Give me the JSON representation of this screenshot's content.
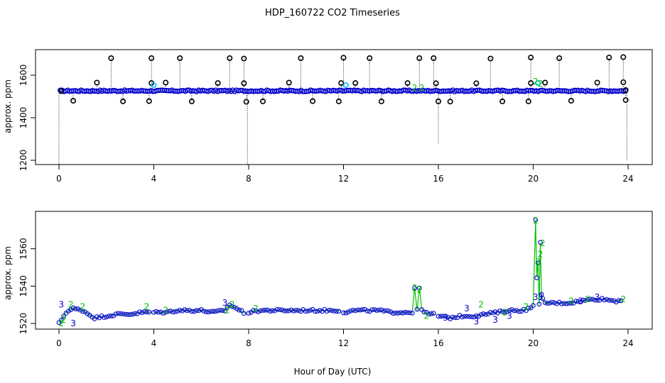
{
  "title": "HDP_160722  CO2 Timeseries",
  "xlabel": "Hour of Day (UTC)",
  "colors": {
    "ref": "#000000",
    "s1": "#00bfff",
    "s2": "#00c000",
    "s3": "#0000cc"
  },
  "chart_data": [
    {
      "type": "scatter",
      "ylabel": "approx. ppm",
      "xlim": [
        0,
        24
      ],
      "ylim": [
        1180,
        1720
      ],
      "xticks": [
        0,
        4,
        8,
        12,
        16,
        20,
        24
      ],
      "yticks": [
        1200,
        1400,
        1600
      ],
      "series": [
        {
          "marker": "o",
          "color": "#000000",
          "points": [
            [
              0.1,
              1525
            ],
            [
              0.6,
              1480
            ],
            [
              1.6,
              1565
            ],
            [
              2.2,
              1680
            ],
            [
              2.7,
              1477
            ],
            [
              3.8,
              1478
            ],
            [
              3.9,
              1680
            ],
            [
              3.9,
              1563
            ],
            [
              4.5,
              1565
            ],
            [
              5.1,
              1680
            ],
            [
              5.6,
              1477
            ],
            [
              6.7,
              1563
            ],
            [
              7.2,
              1680
            ],
            [
              7.8,
              1678
            ],
            [
              7.8,
              1562
            ],
            [
              7.9,
              1475
            ],
            [
              8.6,
              1477
            ],
            [
              9.7,
              1565
            ],
            [
              10.2,
              1680
            ],
            [
              10.7,
              1478
            ],
            [
              11.8,
              1477
            ],
            [
              11.9,
              1563
            ],
            [
              12.0,
              1682
            ],
            [
              12.5,
              1563
            ],
            [
              13.1,
              1680
            ],
            [
              13.6,
              1477
            ],
            [
              14.7,
              1563
            ],
            [
              15.2,
              1680
            ],
            [
              15.8,
              1680
            ],
            [
              15.9,
              1562
            ],
            [
              16.0,
              1477
            ],
            [
              16.5,
              1476
            ],
            [
              17.6,
              1562
            ],
            [
              18.2,
              1678
            ],
            [
              18.7,
              1477
            ],
            [
              19.8,
              1477
            ],
            [
              19.9,
              1563
            ],
            [
              19.9,
              1683
            ],
            [
              20.5,
              1565
            ],
            [
              21.1,
              1680
            ],
            [
              21.6,
              1480
            ],
            [
              22.7,
              1565
            ],
            [
              23.2,
              1683
            ],
            [
              23.8,
              1685
            ],
            [
              23.8,
              1567
            ],
            [
              23.9,
              1530
            ],
            [
              23.9,
              1483
            ]
          ]
        },
        {
          "marker": "o",
          "color": "#00bfff",
          "points": [
            [
              4.0,
              1553
            ],
            [
              12.1,
              1553
            ],
            [
              20.2,
              1563
            ]
          ]
        },
        {
          "marker": "2",
          "color": "#00c000",
          "points": [
            [
              15.0,
              1540
            ],
            [
              15.3,
              1540
            ],
            [
              20.1,
              1570
            ],
            [
              20.3,
              1560
            ]
          ]
        }
      ],
      "drops": [
        [
          0.0,
          1180
        ],
        [
          7.95,
          1180
        ],
        [
          16.0,
          1280
        ],
        [
          23.95,
          1200
        ]
      ]
    },
    {
      "type": "scatter",
      "ylabel": "approx. ppm",
      "xlim": [
        0,
        24
      ],
      "ylim": [
        1517,
        1580
      ],
      "xticks": [
        0,
        4,
        8,
        12,
        16,
        20,
        24
      ],
      "yticks": [
        1520,
        1540,
        1560
      ],
      "series": [
        {
          "marker": "2",
          "color": "#00c000",
          "points": [
            [
              0.1,
              1520
            ],
            [
              0.2,
              1522
            ],
            [
              0.5,
              1530
            ],
            [
              1.0,
              1529
            ],
            [
              3.7,
              1529
            ],
            [
              4.5,
              1527
            ],
            [
              7.1,
              1527
            ],
            [
              7.3,
              1530
            ],
            [
              8.3,
              1528
            ],
            [
              15.0,
              1539
            ],
            [
              15.2,
              1538
            ],
            [
              15.5,
              1524
            ],
            [
              17.8,
              1530
            ],
            [
              18.8,
              1526
            ],
            [
              19.7,
              1529
            ],
            [
              20.1,
              1575
            ],
            [
              20.2,
              1553
            ],
            [
              20.3,
              1557
            ],
            [
              20.4,
              1563
            ],
            [
              21.6,
              1532
            ],
            [
              22.3,
              1533
            ],
            [
              23.8,
              1533
            ]
          ]
        },
        {
          "marker": "3",
          "color": "#0000cc",
          "points": [
            [
              0.1,
              1530
            ],
            [
              0.6,
              1520
            ],
            [
              7.0,
              1531
            ],
            [
              16.3,
              1523
            ],
            [
              17.2,
              1528
            ],
            [
              17.6,
              1521
            ],
            [
              18.4,
              1522
            ],
            [
              19.0,
              1524
            ],
            [
              20.1,
              1534
            ],
            [
              20.3,
              1534
            ],
            [
              22.0,
              1532
            ],
            [
              22.7,
              1534
            ]
          ]
        }
      ],
      "segments": [
        {
          "color": "#00c000",
          "x": [
            0.0,
            0.3,
            0.6,
            1.0,
            1.5,
            2.0,
            2.5,
            3.0,
            3.5,
            3.9
          ],
          "y": [
            1520,
            1526,
            1528,
            1527,
            1523,
            1524,
            1525,
            1525,
            1526,
            1526
          ]
        },
        {
          "color": "#00c000",
          "x": [
            4.0,
            4.5,
            5.0,
            5.5,
            6.0,
            6.5,
            7.0,
            7.2,
            7.5,
            7.9
          ],
          "y": [
            1526,
            1526,
            1527,
            1527,
            1527,
            1526,
            1527,
            1530,
            1528,
            1525
          ]
        },
        {
          "color": "#00c000",
          "x": [
            8.0,
            8.5,
            9.0,
            9.5,
            10.0,
            10.5,
            11.0,
            11.5,
            11.9
          ],
          "y": [
            1526,
            1527,
            1527,
            1527,
            1527,
            1527,
            1527,
            1527,
            1527
          ]
        },
        {
          "color": "#00c000",
          "x": [
            12.0,
            12.5,
            13.0,
            13.5,
            14.0,
            14.5,
            14.9,
            15.0,
            15.1,
            15.2,
            15.3,
            15.4,
            15.6,
            15.9
          ],
          "y": [
            1526,
            1527,
            1527,
            1527,
            1526,
            1526,
            1526,
            1539,
            1527,
            1539,
            1528,
            1526,
            1525,
            1525
          ]
        },
        {
          "color": "#00c000",
          "x": [
            16.0,
            16.5,
            17.0,
            17.5,
            18.0,
            18.5,
            19.0,
            19.5,
            19.9,
            20.0,
            20.1,
            20.15,
            20.2,
            20.25,
            20.3,
            20.35,
            20.4,
            20.5,
            21.0,
            21.5,
            22.0,
            22.5,
            23.0,
            23.5,
            23.8
          ],
          "y": [
            1524,
            1523,
            1524,
            1524,
            1525,
            1526,
            1527,
            1527,
            1528,
            1530,
            1575,
            1545,
            1553,
            1530,
            1563,
            1535,
            1533,
            1531,
            1531,
            1531,
            1532,
            1533,
            1533,
            1532,
            1533
          ]
        }
      ]
    }
  ]
}
